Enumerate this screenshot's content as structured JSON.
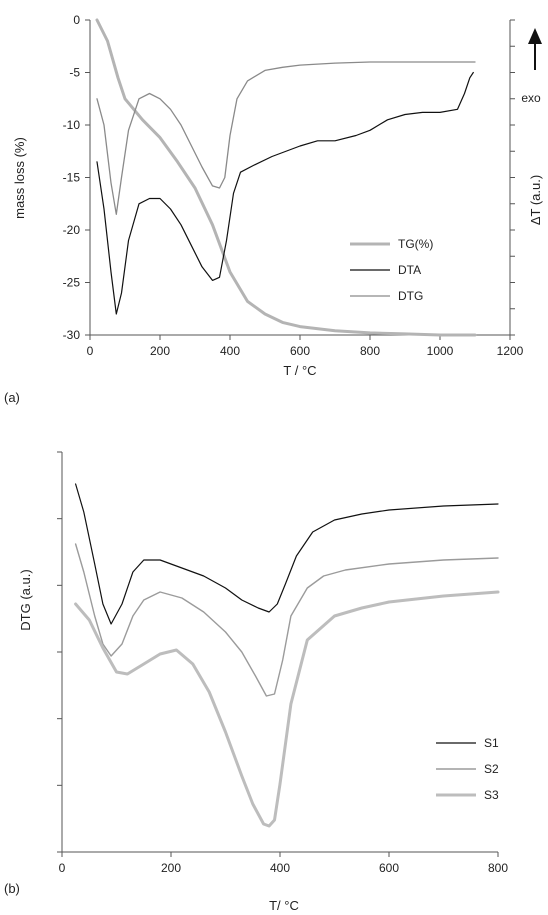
{
  "chart_data": [
    {
      "panel_label": "(a)",
      "type": "line",
      "xlabel": "T / °C",
      "ylabel_left": "mass loss (%)",
      "ylabel_right": "ΔT (a.u.)",
      "annotation": "exo",
      "xlim": [
        0,
        1200
      ],
      "ylim": [
        -30,
        0
      ],
      "xticks": [
        0,
        200,
        400,
        600,
        800,
        1000,
        1200
      ],
      "yticks": [
        0,
        -5,
        -10,
        -15,
        -20,
        -25,
        -30
      ],
      "grid": false,
      "legend_position": "bottom-right",
      "series": [
        {
          "name": "TG(%)",
          "color": "#b4b4b4",
          "width": 3,
          "x": [
            20,
            50,
            80,
            100,
            150,
            200,
            250,
            300,
            350,
            400,
            450,
            500,
            550,
            600,
            700,
            800,
            900,
            1000,
            1100
          ],
          "y": [
            0,
            -2,
            -5.5,
            -7.5,
            -9.5,
            -11.2,
            -13.5,
            -16,
            -19.5,
            -24,
            -26.8,
            -28,
            -28.8,
            -29.2,
            -29.6,
            -29.8,
            -29.9,
            -30,
            -30
          ]
        },
        {
          "name": "DTA",
          "color": "#111111",
          "width": 1.2,
          "x": [
            20,
            40,
            60,
            75,
            90,
            110,
            140,
            170,
            200,
            230,
            260,
            290,
            320,
            350,
            370,
            390,
            410,
            430,
            470,
            520,
            600,
            650,
            700,
            760,
            800,
            850,
            900,
            950,
            1000,
            1050,
            1070,
            1085,
            1095
          ],
          "y": [
            -13.5,
            -18,
            -24,
            -28,
            -26,
            -21,
            -17.5,
            -17,
            -17,
            -18,
            -19.5,
            -21.5,
            -23.5,
            -24.8,
            -24.5,
            -21,
            -16.5,
            -14.5,
            -13.8,
            -13,
            -12,
            -11.5,
            -11.5,
            -11,
            -10.5,
            -9.5,
            -9,
            -8.8,
            -8.8,
            -8.5,
            -7,
            -5.5,
            -5
          ]
        },
        {
          "name": "DTG",
          "color": "#8a8a8a",
          "width": 1.3,
          "x": [
            20,
            40,
            60,
            75,
            90,
            110,
            140,
            170,
            200,
            230,
            260,
            290,
            320,
            350,
            370,
            385,
            400,
            420,
            450,
            500,
            550,
            600,
            700,
            800,
            900,
            1000,
            1100
          ],
          "y": [
            -7.5,
            -10,
            -15.5,
            -18.5,
            -15,
            -10.5,
            -7.5,
            -7,
            -7.5,
            -8.5,
            -10,
            -12,
            -14,
            -15.8,
            -16,
            -15,
            -11,
            -7.5,
            -5.8,
            -4.8,
            -4.5,
            -4.3,
            -4.1,
            -4,
            -4,
            -4,
            -4
          ]
        }
      ]
    },
    {
      "panel_label": "(b)",
      "type": "line",
      "xlabel": "T/ °C",
      "ylabel": "DTG (a.u.)",
      "xlim": [
        0,
        800
      ],
      "ylim": [
        0,
        100
      ],
      "xticks": [
        0,
        200,
        400,
        600,
        800
      ],
      "ytick_count": 7,
      "show_ytick_labels": false,
      "grid": false,
      "legend_position": "bottom-right",
      "series": [
        {
          "name": "S1",
          "color": "#111111",
          "width": 1.2,
          "x": [
            25,
            40,
            60,
            75,
            90,
            110,
            130,
            150,
            180,
            220,
            260,
            300,
            330,
            360,
            380,
            395,
            410,
            430,
            460,
            500,
            550,
            600,
            700,
            800
          ],
          "y": [
            92,
            85,
            72,
            62,
            57,
            62,
            70,
            73,
            73,
            71,
            69,
            66,
            63,
            61,
            60,
            62,
            67,
            74,
            80,
            83,
            84.5,
            85.5,
            86.5,
            87
          ]
        },
        {
          "name": "S2",
          "color": "#9b9b9b",
          "width": 1.4,
          "x": [
            25,
            40,
            60,
            75,
            90,
            110,
            130,
            150,
            180,
            220,
            260,
            300,
            330,
            355,
            375,
            390,
            405,
            420,
            450,
            480,
            520,
            600,
            700,
            800
          ],
          "y": [
            77,
            70,
            59,
            52,
            49,
            52,
            59,
            63,
            65,
            63.5,
            60,
            55,
            50,
            44,
            39,
            39.5,
            48,
            59,
            66,
            69,
            70.5,
            72,
            73,
            73.5
          ]
        },
        {
          "name": "S3",
          "color": "#bdbdbd",
          "width": 3,
          "x": [
            25,
            50,
            75,
            100,
            120,
            150,
            180,
            210,
            240,
            270,
            300,
            330,
            350,
            370,
            380,
            390,
            400,
            420,
            450,
            500,
            550,
            600,
            700,
            800
          ],
          "y": [
            62,
            58,
            51,
            45,
            44.5,
            47,
            49.5,
            50.5,
            47,
            40,
            30,
            19,
            12,
            7,
            6.5,
            8,
            17,
            37,
            53,
            59,
            61,
            62.5,
            64,
            65
          ]
        }
      ]
    }
  ]
}
